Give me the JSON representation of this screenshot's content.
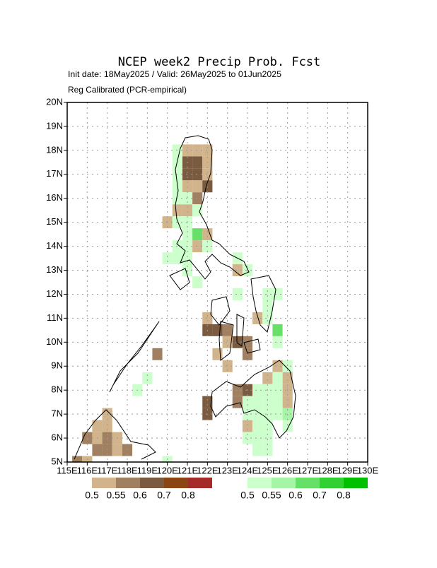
{
  "header": {
    "title": "NCEP week2 Precip Prob. Fcst",
    "subtitle": "Init date: 18May2025 / Valid: 26May2025 to 01Jun2025",
    "subtitle2": "Reg Calibrated (PCR-empirical)"
  },
  "map": {
    "xlim": [
      115,
      130
    ],
    "ylim": [
      5,
      20
    ],
    "xticks": [
      {
        "value": 115,
        "label": "115E"
      },
      {
        "value": 116,
        "label": "116E"
      },
      {
        "value": 117,
        "label": "117E"
      },
      {
        "value": 118,
        "label": "118E"
      },
      {
        "value": 119,
        "label": "119E"
      },
      {
        "value": 120,
        "label": "120E"
      },
      {
        "value": 121,
        "label": "121E"
      },
      {
        "value": 122,
        "label": "122E"
      },
      {
        "value": 123,
        "label": "123E"
      },
      {
        "value": 124,
        "label": "124E"
      },
      {
        "value": 125,
        "label": "125E"
      },
      {
        "value": 126,
        "label": "126E"
      },
      {
        "value": 127,
        "label": "127E"
      },
      {
        "value": 128,
        "label": "128E"
      },
      {
        "value": 129,
        "label": "129E"
      },
      {
        "value": 130,
        "label": "130E"
      }
    ],
    "yticks": [
      {
        "value": 5,
        "label": "5N"
      },
      {
        "value": 6,
        "label": "6N"
      },
      {
        "value": 7,
        "label": "7N"
      },
      {
        "value": 8,
        "label": "8N"
      },
      {
        "value": 9,
        "label": "9N"
      },
      {
        "value": 10,
        "label": "10N"
      },
      {
        "value": 11,
        "label": "11N"
      },
      {
        "value": 12,
        "label": "12N"
      },
      {
        "value": 13,
        "label": "13N"
      },
      {
        "value": 14,
        "label": "14N"
      },
      {
        "value": 15,
        "label": "15N"
      },
      {
        "value": 16,
        "label": "16N"
      },
      {
        "value": 17,
        "label": "17N"
      },
      {
        "value": 18,
        "label": "18N"
      },
      {
        "value": 19,
        "label": "19N"
      },
      {
        "value": 20,
        "label": "20N"
      }
    ],
    "grid": true,
    "cell_size": 0.5,
    "cells_below": [
      [
        121,
        18,
        0.5
      ],
      [
        121.5,
        18,
        0.5
      ],
      [
        122,
        18,
        0.5
      ],
      [
        121,
        17.5,
        0.6
      ],
      [
        121.5,
        17.5,
        0.6
      ],
      [
        122,
        17.5,
        0.5
      ],
      [
        121,
        17,
        0.6
      ],
      [
        121.5,
        17,
        0.6
      ],
      [
        122,
        17,
        0.5
      ],
      [
        121,
        16.5,
        0.5
      ],
      [
        121.5,
        16.5,
        0.5
      ],
      [
        122,
        16.5,
        0.6
      ],
      [
        121.5,
        16,
        0.55
      ],
      [
        120.5,
        15.5,
        0.5
      ],
      [
        121,
        15.5,
        0.5
      ],
      [
        120,
        15,
        0.5
      ],
      [
        122,
        14.5,
        0.5
      ],
      [
        121.5,
        14,
        0.5
      ],
      [
        123.5,
        13,
        0.5
      ],
      [
        122,
        11,
        0.5
      ],
      [
        124.5,
        11,
        0.5
      ],
      [
        122,
        10.5,
        0.6
      ],
      [
        122.5,
        10.5,
        0.6
      ],
      [
        123,
        10.5,
        0.55
      ],
      [
        123,
        10,
        0.5
      ],
      [
        123.5,
        10,
        0.6
      ],
      [
        124,
        10,
        0.55
      ],
      [
        119.5,
        9.5,
        0.55
      ],
      [
        122.5,
        9.5,
        0.5
      ],
      [
        124,
        9.5,
        0.55
      ],
      [
        123,
        9,
        0.5
      ],
      [
        125.5,
        9,
        0.5
      ],
      [
        125,
        8.5,
        0.5
      ],
      [
        126,
        8.5,
        0.5
      ],
      [
        123.5,
        8,
        0.55
      ],
      [
        124,
        8,
        0.6
      ],
      [
        126,
        8,
        0.5
      ],
      [
        122,
        7.5,
        0.6
      ],
      [
        123.5,
        7.5,
        0.55
      ],
      [
        126,
        7.5,
        0.5
      ],
      [
        122,
        7,
        0.6
      ],
      [
        117,
        7,
        0.5
      ],
      [
        116.5,
        6.5,
        0.5
      ],
      [
        117,
        6.5,
        0.5
      ],
      [
        124,
        6.5,
        0.5
      ],
      [
        116,
        6,
        0.55
      ],
      [
        116.5,
        6,
        0.5
      ],
      [
        117,
        6,
        0.55
      ],
      [
        117.5,
        6,
        0.5
      ],
      [
        116.5,
        5.5,
        0.55
      ],
      [
        117,
        5.5,
        0.55
      ],
      [
        117.5,
        5.5,
        0.5
      ],
      [
        118,
        5.5,
        0.55
      ],
      [
        115.5,
        5,
        0.55
      ],
      [
        116,
        5,
        0.5
      ]
    ],
    "cells_above": [
      [
        120.5,
        18,
        0.5
      ],
      [
        120.5,
        17.5,
        0.5
      ],
      [
        120.5,
        17,
        0.5
      ],
      [
        120.5,
        16.5,
        0.5
      ],
      [
        120.5,
        16,
        0.5
      ],
      [
        121,
        16,
        0.5
      ],
      [
        121.5,
        15.5,
        0.5
      ],
      [
        120.5,
        15,
        0.5
      ],
      [
        121,
        15,
        0.5
      ],
      [
        121,
        14.5,
        0.5
      ],
      [
        121.5,
        14.5,
        0.6
      ],
      [
        120.5,
        14,
        0.5
      ],
      [
        121,
        14,
        0.5
      ],
      [
        122,
        14,
        0.5
      ],
      [
        120,
        13.5,
        0.5
      ],
      [
        120.5,
        13.5,
        0.5
      ],
      [
        121,
        13.5,
        0.5
      ],
      [
        123.5,
        13.5,
        0.5
      ],
      [
        121,
        13,
        0.5
      ],
      [
        124,
        13,
        0.5
      ],
      [
        121.5,
        12.5,
        0.5
      ],
      [
        123.5,
        12,
        0.5
      ],
      [
        125,
        12,
        0.5
      ],
      [
        125.5,
        12,
        0.5
      ],
      [
        125,
        11.5,
        0.5
      ],
      [
        125,
        11,
        0.5
      ],
      [
        125.5,
        10.5,
        0.6
      ],
      [
        125.5,
        10,
        0.5
      ],
      [
        126,
        9,
        0.5
      ],
      [
        119,
        8.5,
        0.5
      ],
      [
        125.5,
        8.5,
        0.5
      ],
      [
        118.5,
        8,
        0.5
      ],
      [
        124.5,
        8,
        0.5
      ],
      [
        125,
        8,
        0.5
      ],
      [
        125.5,
        8,
        0.5
      ],
      [
        124,
        7.5,
        0.5
      ],
      [
        124.5,
        7.5,
        0.5
      ],
      [
        125,
        7.5,
        0.5
      ],
      [
        125.5,
        7.5,
        0.5
      ],
      [
        124,
        7,
        0.5
      ],
      [
        124.5,
        7,
        0.5
      ],
      [
        125,
        7,
        0.5
      ],
      [
        125.5,
        7,
        0.5
      ],
      [
        126,
        7,
        0.55
      ],
      [
        124.5,
        6.5,
        0.5
      ],
      [
        125,
        6.5,
        0.5
      ],
      [
        126,
        6.5,
        0.5
      ],
      [
        124,
        6,
        0.5
      ],
      [
        124.5,
        6,
        0.5
      ],
      [
        125,
        6,
        0.5
      ],
      [
        124.5,
        5.5,
        0.5
      ],
      [
        125,
        5.5,
        0.5
      ],
      [
        120,
        5,
        0.5
      ]
    ]
  },
  "legend_below": {
    "levels": [
      0.5,
      0.55,
      0.6,
      0.7,
      0.8
    ],
    "colors": [
      "#d2b48c",
      "#a08060",
      "#7b5b3f",
      "#8b4513",
      "#a52a2a"
    ]
  },
  "legend_above": {
    "levels": [
      0.5,
      0.55,
      0.6,
      0.7,
      0.8
    ],
    "colors": [
      "#ccffcc",
      "#a6f5a6",
      "#66e066",
      "#33d033",
      "#00c000"
    ]
  }
}
